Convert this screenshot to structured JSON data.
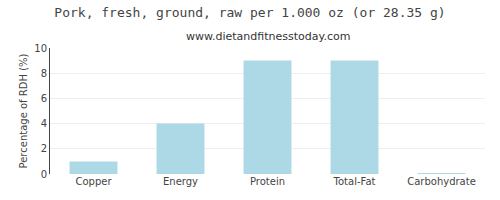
{
  "chart_data": {
    "type": "bar",
    "title": "Pork, fresh, ground, raw per 1.000 oz (or 28.35 g)",
    "subtitle": "www.dietandfitnesstoday.com",
    "categories": [
      "Copper",
      "Energy",
      "Protein",
      "Total-Fat",
      "Carbohydrate"
    ],
    "values": [
      1.0,
      4.0,
      9.0,
      9.0,
      0.05
    ],
    "color": "#add8e6",
    "ylabel": "Percentage of RDH (%)",
    "ylim": [
      0,
      10
    ],
    "yticks": [
      0,
      2,
      4,
      6,
      8,
      10
    ],
    "grid": true
  }
}
